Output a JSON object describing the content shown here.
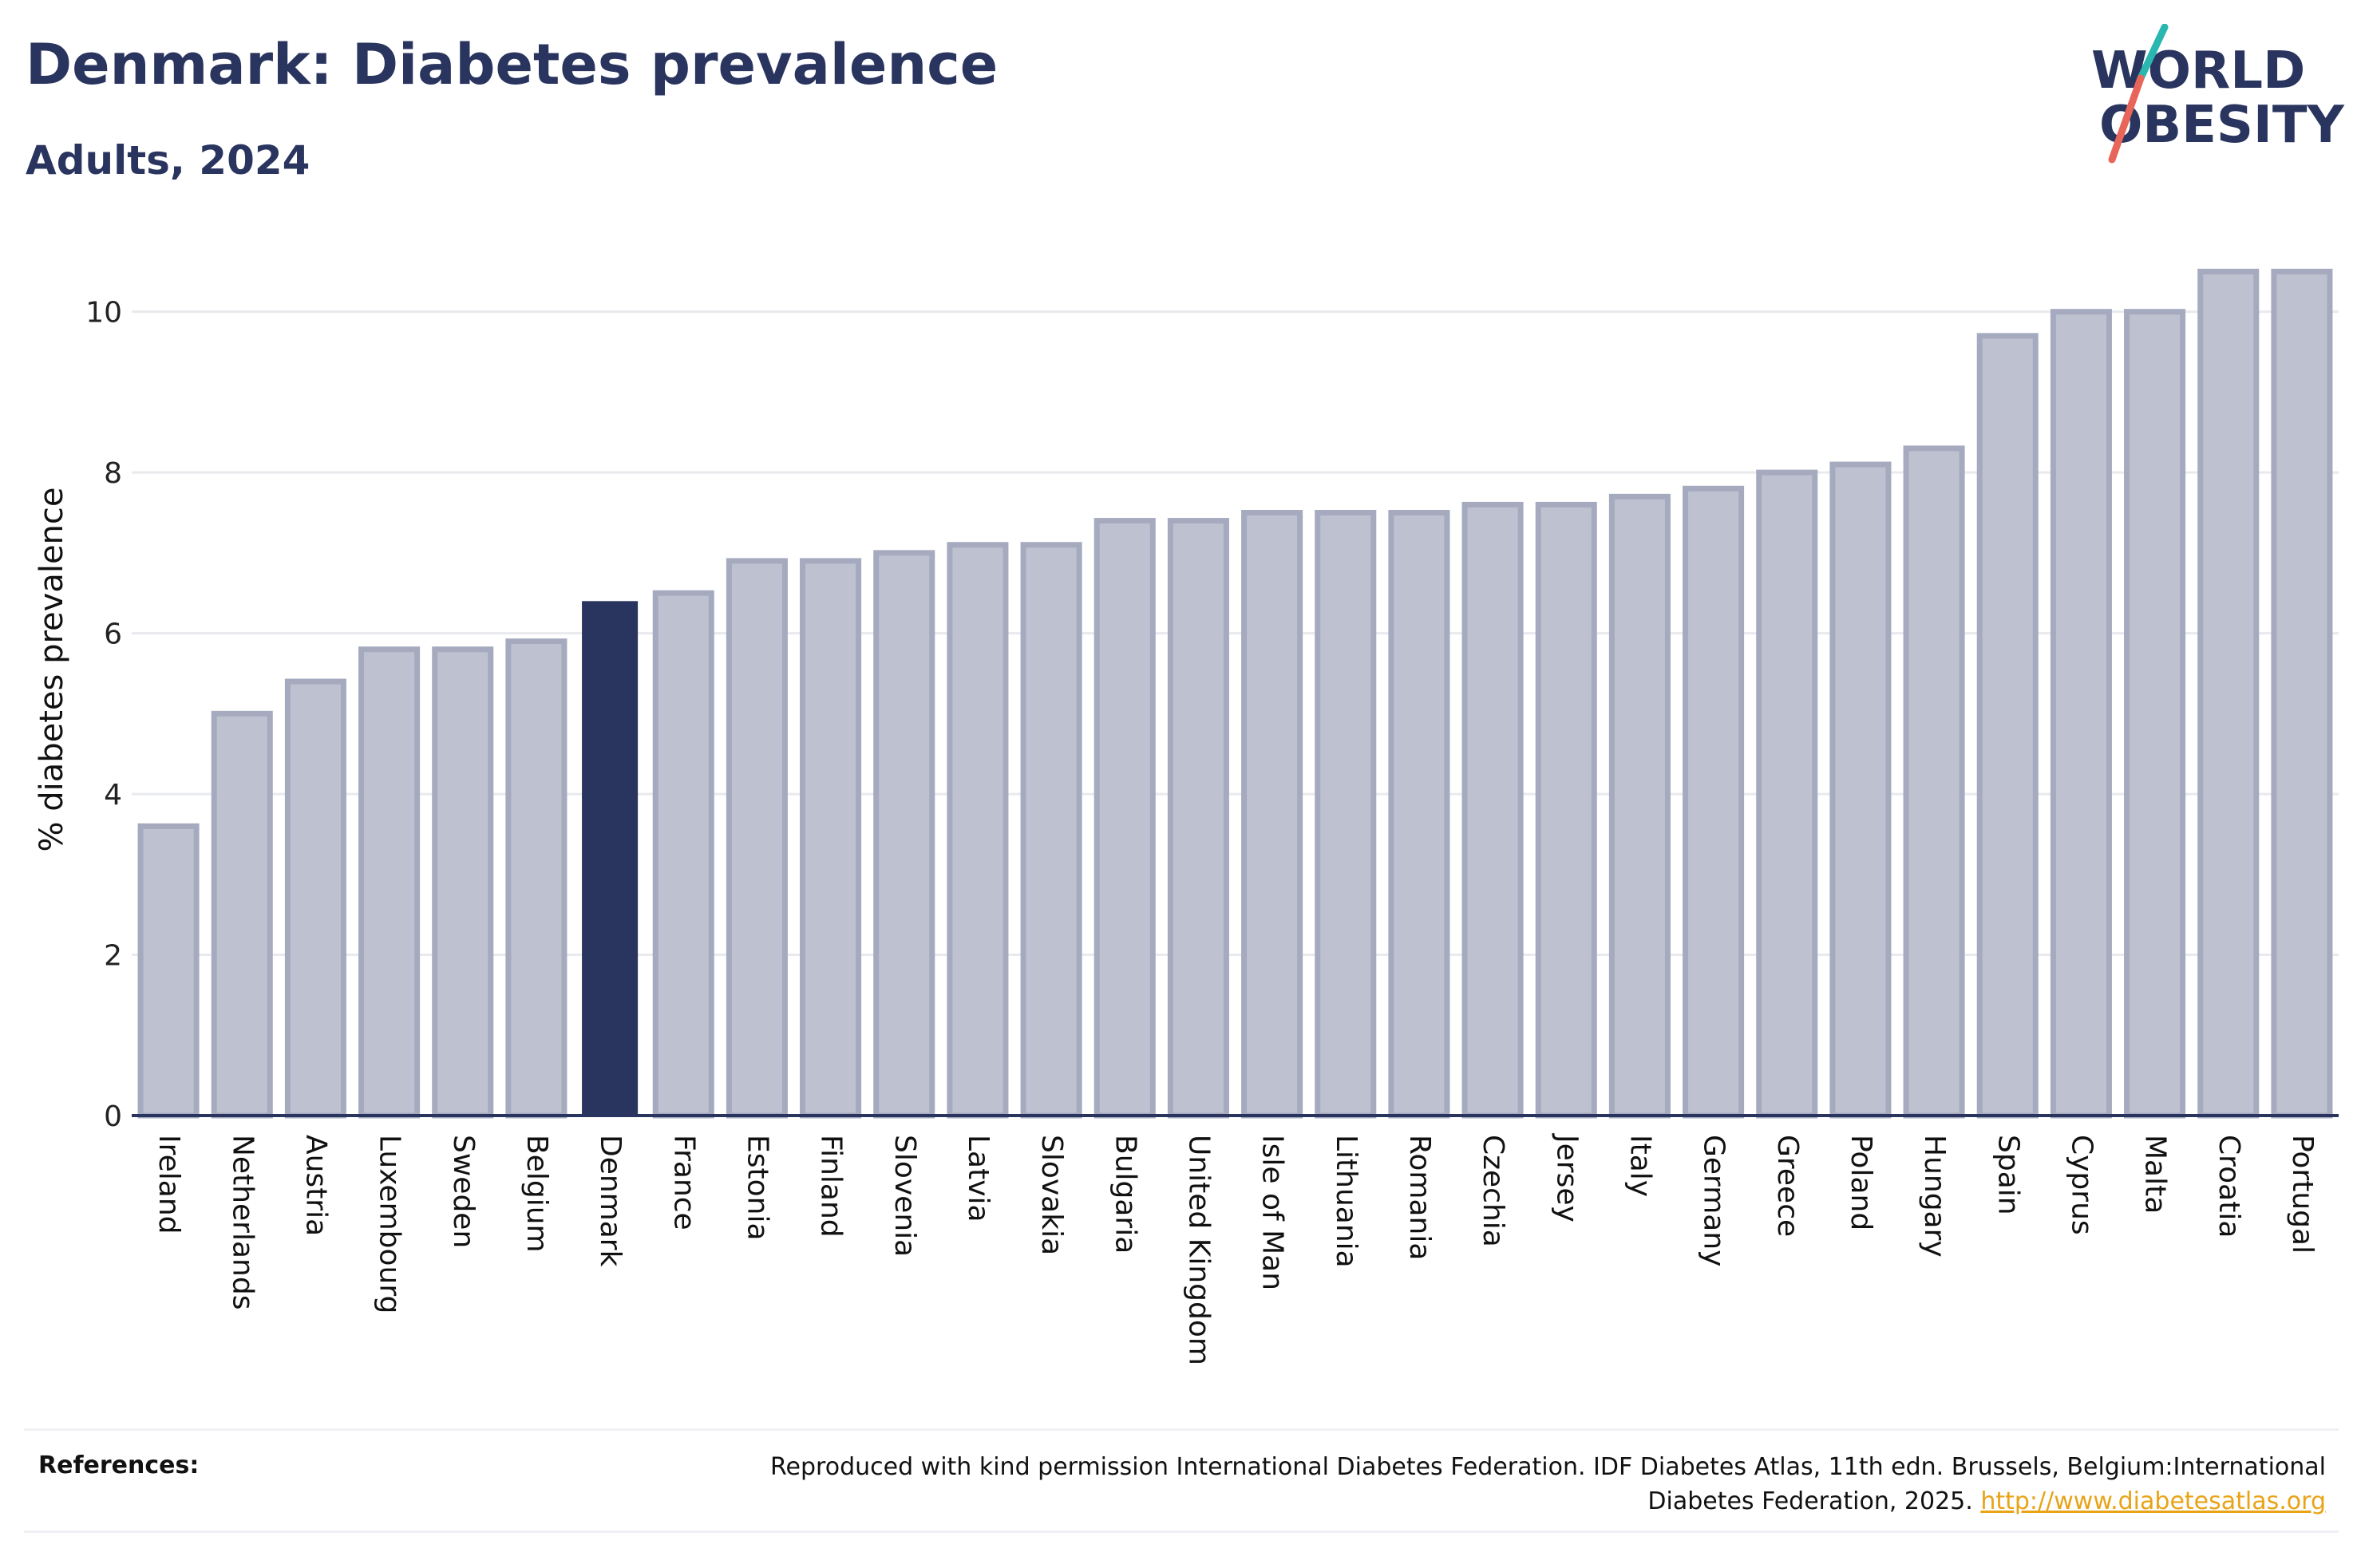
{
  "header": {
    "title": "Denmark: Diabetes prevalence",
    "subtitle": "Adults, 2024"
  },
  "logo": {
    "line1": "WORLD",
    "line2": "OBESITY",
    "colors": {
      "text": "#2a355f",
      "slash_top": "#2ab7b0",
      "slash_bottom": "#e8655a"
    }
  },
  "chart_data": {
    "type": "bar",
    "title": "Denmark: Diabetes prevalence",
    "subtitle": "Adults, 2024",
    "xlabel": "",
    "ylabel": "% diabetes prevalence",
    "ylim": [
      0,
      10.9
    ],
    "yticks": [
      0,
      2,
      4,
      6,
      8,
      10
    ],
    "grid": true,
    "highlight": "Denmark",
    "colors": {
      "bar": "#bec2d0",
      "bar_border": "#a5aabf",
      "highlight": "#2a355f",
      "grid": "#e8eaee",
      "axis": "#2a355f"
    },
    "categories": [
      "Ireland",
      "Netherlands",
      "Austria",
      "Luxembourg",
      "Sweden",
      "Belgium",
      "Denmark",
      "France",
      "Estonia",
      "Finland",
      "Slovenia",
      "Latvia",
      "Slovakia",
      "Bulgaria",
      "United Kingdom",
      "Isle of Man",
      "Lithuania",
      "Romania",
      "Czechia",
      "Jersey",
      "Italy",
      "Germany",
      "Greece",
      "Poland",
      "Hungary",
      "Spain",
      "Cyprus",
      "Malta",
      "Croatia",
      "Portugal"
    ],
    "values": [
      3.6,
      5.0,
      5.4,
      5.8,
      5.8,
      5.9,
      6.4,
      6.5,
      6.9,
      6.9,
      7.0,
      7.1,
      7.1,
      7.4,
      7.4,
      7.5,
      7.5,
      7.5,
      7.6,
      7.6,
      7.7,
      7.8,
      8.0,
      8.1,
      8.3,
      9.7,
      10.0,
      10.0,
      10.5,
      10.5
    ]
  },
  "references": {
    "label": "References:",
    "text": "Reproduced with kind permission International Diabetes Federation. IDF Diabetes Atlas, 11th edn. Brussels, Belgium:International Diabetes Federation, 2025. ",
    "link": "http://www.diabetesatlas.org"
  }
}
